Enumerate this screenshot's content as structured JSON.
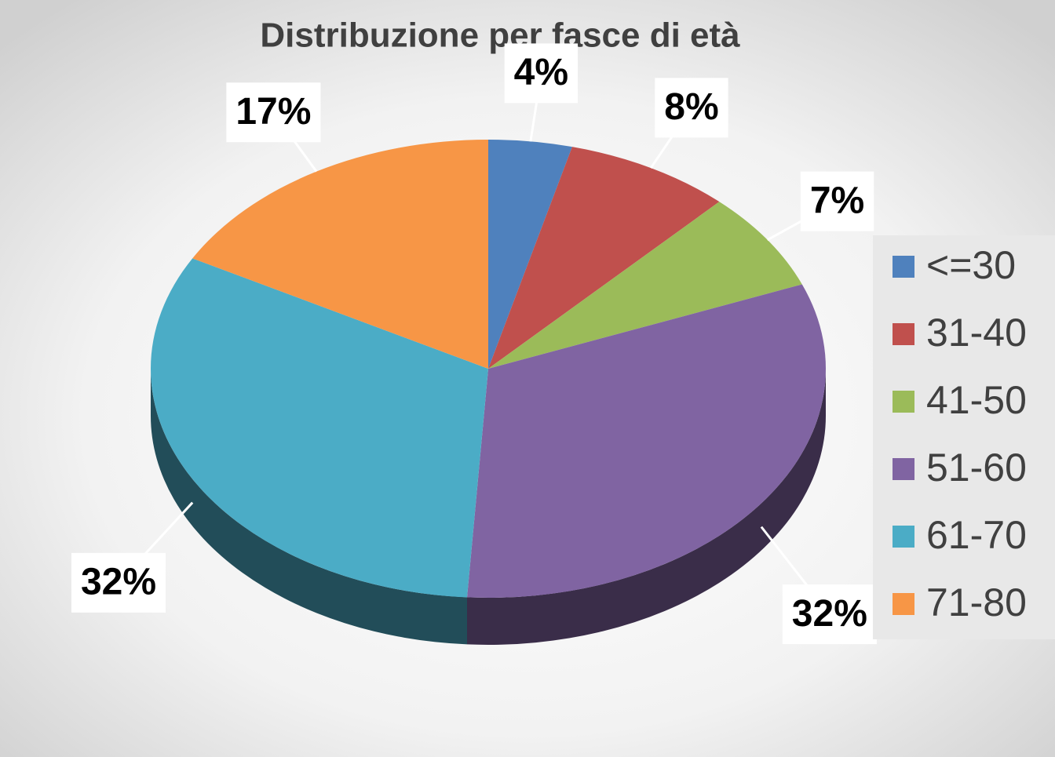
{
  "chart_data": {
    "type": "pie",
    "title": "Distribuzione per fasce di età",
    "categories": [
      "<=30",
      "31-40",
      "41-50",
      "51-60",
      "61-70",
      "71-80"
    ],
    "values": [
      4,
      8,
      7,
      32,
      32,
      17
    ],
    "value_labels": [
      "4%",
      "8%",
      "7%",
      "32%",
      "32%",
      "17%"
    ],
    "colors": [
      "#4f81bd",
      "#c0504d",
      "#9bbb59",
      "#8064a2",
      "#4bacc6",
      "#f79646"
    ],
    "legend": "right"
  }
}
